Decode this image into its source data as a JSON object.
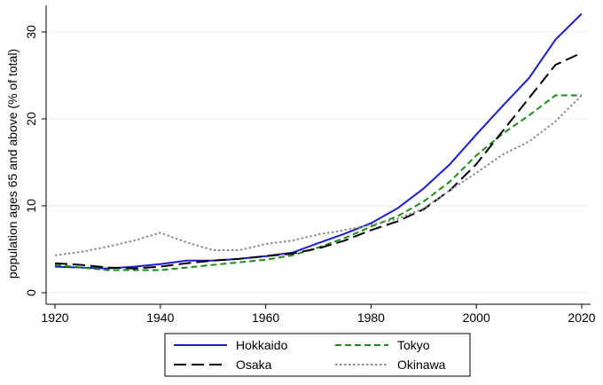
{
  "chart_data": {
    "type": "line",
    "ylabel": "population ages 65 and above (% of total)",
    "xlabel": "",
    "xlim": [
      1920,
      2020
    ],
    "ylim": [
      0,
      32
    ],
    "xticks": [
      1920,
      1940,
      1960,
      1980,
      2000,
      2020
    ],
    "yticks": [
      0,
      10,
      20,
      30
    ],
    "grid": "horizontal",
    "legend_position": "bottom",
    "series": [
      {
        "name": "Hokkaido",
        "color": "#1c1cd6",
        "style": "solid",
        "x": [
          1920,
          1925,
          1930,
          1935,
          1940,
          1945,
          1950,
          1955,
          1960,
          1965,
          1970,
          1975,
          1980,
          1985,
          1990,
          1995,
          2000,
          2005,
          2010,
          2015,
          2020
        ],
        "y": [
          3.0,
          2.9,
          2.8,
          3.0,
          3.3,
          3.7,
          3.7,
          3.9,
          4.2,
          4.6,
          5.7,
          6.8,
          8.0,
          9.7,
          12.0,
          14.8,
          18.2,
          21.5,
          24.7,
          29.1,
          32.1
        ]
      },
      {
        "name": "Tokyo",
        "color": "#1a8c1a",
        "style": "dashed",
        "x": [
          1920,
          1925,
          1930,
          1935,
          1940,
          1945,
          1950,
          1955,
          1960,
          1965,
          1970,
          1975,
          1980,
          1985,
          1990,
          1995,
          2000,
          2005,
          2010,
          2015,
          2020
        ],
        "y": [
          3.2,
          2.9,
          2.6,
          2.6,
          2.6,
          2.9,
          3.2,
          3.5,
          3.8,
          4.3,
          5.2,
          6.3,
          7.6,
          8.8,
          10.5,
          12.8,
          15.8,
          18.3,
          20.4,
          22.7,
          22.7
        ]
      },
      {
        "name": "Osaka",
        "color": "#000000",
        "style": "longdash",
        "x": [
          1920,
          1925,
          1930,
          1935,
          1940,
          1945,
          1950,
          1955,
          1960,
          1965,
          1970,
          1975,
          1980,
          1985,
          1990,
          1995,
          2000,
          2005,
          2010,
          2015,
          2020
        ],
        "y": [
          3.4,
          3.2,
          2.9,
          2.8,
          3.0,
          3.4,
          3.7,
          3.9,
          4.2,
          4.5,
          5.1,
          6.0,
          7.2,
          8.2,
          9.6,
          11.8,
          14.8,
          18.6,
          22.4,
          26.2,
          27.6
        ]
      },
      {
        "name": "Okinawa",
        "color": "#8c8c8c",
        "style": "dotted",
        "x": [
          1920,
          1925,
          1930,
          1935,
          1940,
          1945,
          1950,
          1955,
          1960,
          1965,
          1970,
          1975,
          1980,
          1985,
          1990,
          1995,
          2000,
          2005,
          2010,
          2015,
          2020
        ],
        "y": [
          4.3,
          4.7,
          5.3,
          6.0,
          6.9,
          5.8,
          4.9,
          4.9,
          5.6,
          6.0,
          6.7,
          7.2,
          7.8,
          8.5,
          9.7,
          11.8,
          13.8,
          15.9,
          17.4,
          19.7,
          22.7
        ]
      }
    ],
    "legend": [
      {
        "name": "Hokkaido",
        "series_index": 0
      },
      {
        "name": "Tokyo",
        "series_index": 1
      },
      {
        "name": "Osaka",
        "series_index": 2
      },
      {
        "name": "Okinawa",
        "series_index": 3
      }
    ]
  }
}
